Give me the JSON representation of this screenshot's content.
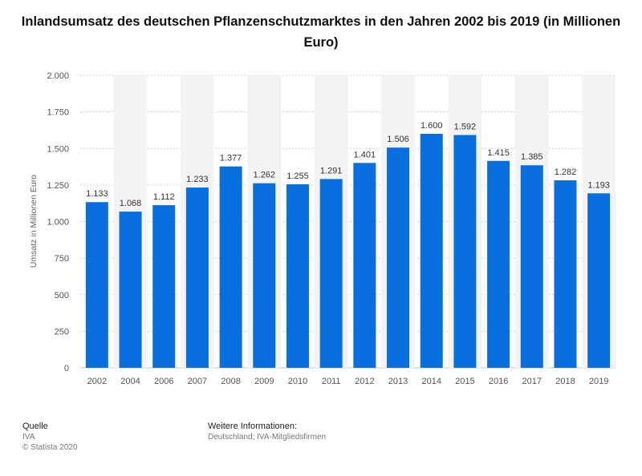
{
  "chart_data": {
    "type": "bar",
    "title": "Inlandsumsatz des deutschen Pflanzenschutzmarktes in den Jahren 2002 bis 2019 (in Millionen Euro)",
    "xlabel": "",
    "ylabel": "Umsatz in Millionen Euro",
    "categories": [
      "2002",
      "2004",
      "2006",
      "2007",
      "2008",
      "2009",
      "2010",
      "2011",
      "2012",
      "2013",
      "2014",
      "2015",
      "2016",
      "2017",
      "2018",
      "2019"
    ],
    "values": [
      1133,
      1068,
      1112,
      1233,
      1377,
      1262,
      1255,
      1291,
      1401,
      1506,
      1600,
      1592,
      1415,
      1385,
      1282,
      1193
    ],
    "value_labels": [
      "1.133",
      "1.068",
      "1.112",
      "1.233",
      "1.377",
      "1.262",
      "1.255",
      "1.291",
      "1.401",
      "1.506",
      "1.600",
      "1.592",
      "1.415",
      "1.385",
      "1.282",
      "1.193"
    ],
    "ylim": [
      0,
      2000
    ],
    "yticks": [
      0,
      250,
      500,
      750,
      1000,
      1250,
      1500,
      1750,
      2000
    ],
    "ytick_labels": [
      "0",
      "250",
      "500",
      "750",
      "1.000",
      "1.250",
      "1.500",
      "1.750",
      "2.000"
    ],
    "grid": true,
    "bar_color": "#0a6fde"
  },
  "footer": {
    "source_heading": "Quelle",
    "source_value": "IVA",
    "copyright": "© Statista 2020",
    "info_heading": "Weitere Informationen:",
    "info_value": "Deutschland; IVA-Mitgliedsfirmen"
  }
}
